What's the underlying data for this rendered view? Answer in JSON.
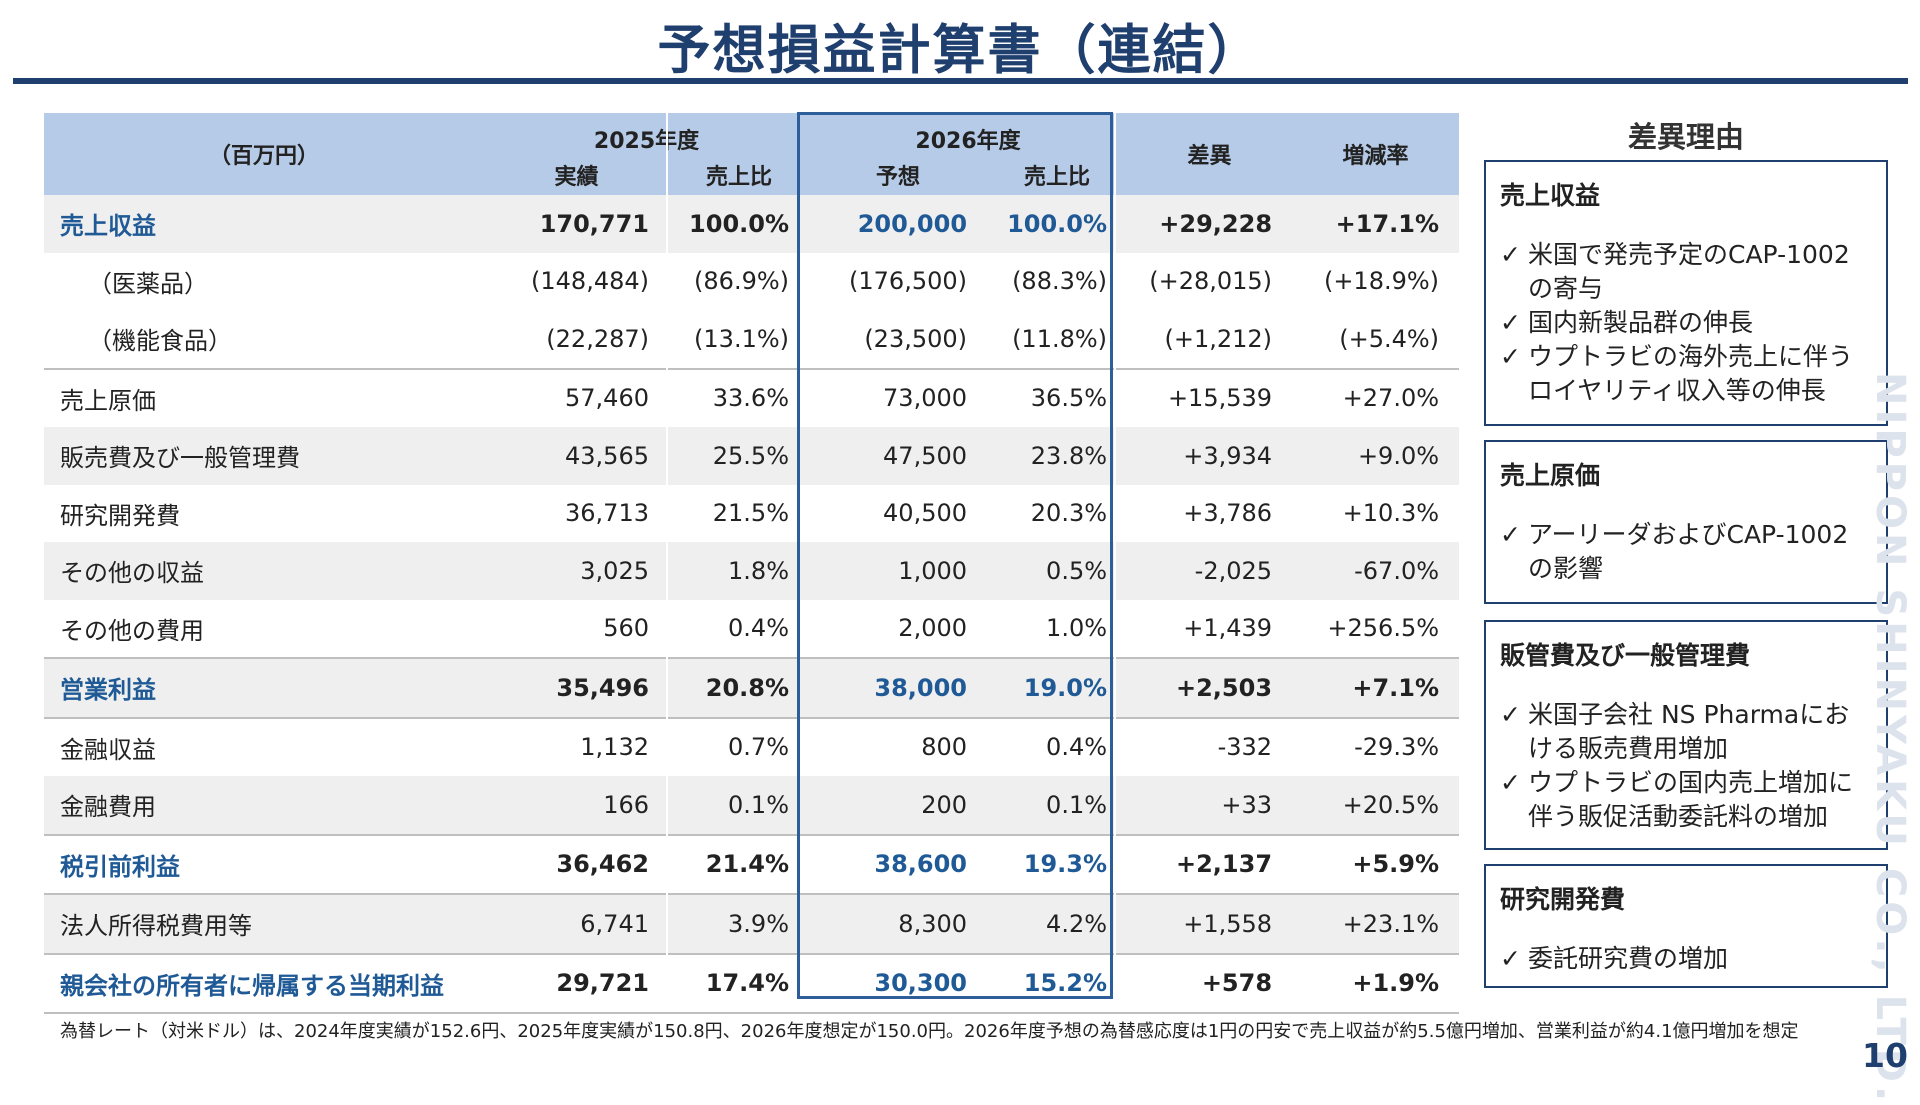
{
  "slide": {
    "title": "予想損益計算書（連結）",
    "page_number": "10",
    "vertical_logo": "NIPPON SHINYAKU CO., LTD."
  },
  "table": {
    "unit": "（百万円）",
    "year_2025": "2025年度",
    "year_2026": "2026年度",
    "col_actual": "実績",
    "col_ratio_2025": "売上比",
    "col_forecast": "予想",
    "col_ratio_2026": "売上比",
    "col_diff": "差異",
    "col_rate": "増減率",
    "rows": [
      {
        "label": "売上収益",
        "a2025": "170,771",
        "r2025": "100.0%",
        "f2026": "200,000",
        "r2026": "100.0%",
        "diff": "+29,228",
        "rate": "+17.1%"
      },
      {
        "label": "（医薬品）",
        "a2025": "(148,484)",
        "r2025": "(86.9%)",
        "f2026": "(176,500)",
        "r2026": "(88.3%)",
        "diff": "(+28,015)",
        "rate": "(+18.9%)"
      },
      {
        "label": "（機能食品）",
        "a2025": "(22,287)",
        "r2025": "(13.1%)",
        "f2026": "(23,500)",
        "r2026": "(11.8%)",
        "diff": "(+1,212)",
        "rate": "(+5.4%)"
      },
      {
        "label": "売上原価",
        "a2025": "57,460",
        "r2025": "33.6%",
        "f2026": "73,000",
        "r2026": "36.5%",
        "diff": "+15,539",
        "rate": "+27.0%"
      },
      {
        "label": "販売費及び一般管理費",
        "a2025": "43,565",
        "r2025": "25.5%",
        "f2026": "47,500",
        "r2026": "23.8%",
        "diff": "+3,934",
        "rate": "+9.0%"
      },
      {
        "label": "研究開発費",
        "a2025": "36,713",
        "r2025": "21.5%",
        "f2026": "40,500",
        "r2026": "20.3%",
        "diff": "+3,786",
        "rate": "+10.3%"
      },
      {
        "label": "その他の収益",
        "a2025": "3,025",
        "r2025": "1.8%",
        "f2026": "1,000",
        "r2026": "0.5%",
        "diff": "-2,025",
        "rate": "-67.0%"
      },
      {
        "label": "その他の費用",
        "a2025": "560",
        "r2025": "0.4%",
        "f2026": "2,000",
        "r2026": "1.0%",
        "diff": "+1,439",
        "rate": "+256.5%"
      },
      {
        "label": "営業利益",
        "a2025": "35,496",
        "r2025": "20.8%",
        "f2026": "38,000",
        "r2026": "19.0%",
        "diff": "+2,503",
        "rate": "+7.1%"
      },
      {
        "label": "金融収益",
        "a2025": "1,132",
        "r2025": "0.7%",
        "f2026": "800",
        "r2026": "0.4%",
        "diff": "-332",
        "rate": "-29.3%"
      },
      {
        "label": "金融費用",
        "a2025": "166",
        "r2025": "0.1%",
        "f2026": "200",
        "r2026": "0.1%",
        "diff": "+33",
        "rate": "+20.5%"
      },
      {
        "label": "税引前利益",
        "a2025": "36,462",
        "r2025": "21.4%",
        "f2026": "38,600",
        "r2026": "19.3%",
        "diff": "+2,137",
        "rate": "+5.9%"
      },
      {
        "label": "法人所得税費用等",
        "a2025": "6,741",
        "r2025": "3.9%",
        "f2026": "8,300",
        "r2026": "4.2%",
        "diff": "+1,558",
        "rate": "+23.1%"
      },
      {
        "label": "親会社の所有者に帰属する当期利益",
        "a2025": "29,721",
        "r2025": "17.4%",
        "f2026": "30,300",
        "r2026": "15.2%",
        "diff": "+578",
        "rate": "+1.9%"
      }
    ]
  },
  "reasons": {
    "title": "差異理由",
    "check_glyph": "✓",
    "boxes": [
      {
        "heading": "売上収益",
        "items": [
          "米国で発売予定のCAP-1002の寄与",
          "国内新製品群の伸長",
          "ウプトラビの海外売上に伴うロイヤリティ収入等の伸長"
        ]
      },
      {
        "heading": "売上原価",
        "items": [
          "アーリーダおよびCAP-1002の影響"
        ]
      },
      {
        "heading": "販管費及び一般管理費",
        "items": [
          "米国子会社 NS Pharmaにおける販売費用増加",
          "ウプトラビの国内売上増加に伴う販促活動委託料の増加"
        ]
      },
      {
        "heading": "研究開発費",
        "items": [
          "委託研究費の増加"
        ]
      }
    ]
  },
  "footnote": "為替レート（対米ドル）は、2024年度実績が152.6円、2025年度実績が150.8円、2026年度想定が150.0円。2026年度予想の為替感応度は1円の円安で売上収益が約5.5億円増加、営業利益が約4.1億円増加を想定",
  "colors": {
    "title": "#1f3f6e",
    "header_fill": "#b6cbe7",
    "highlight_text": "#1f5a96",
    "forecast_frame": "#2e5e9a",
    "zebra": "#efefef"
  }
}
